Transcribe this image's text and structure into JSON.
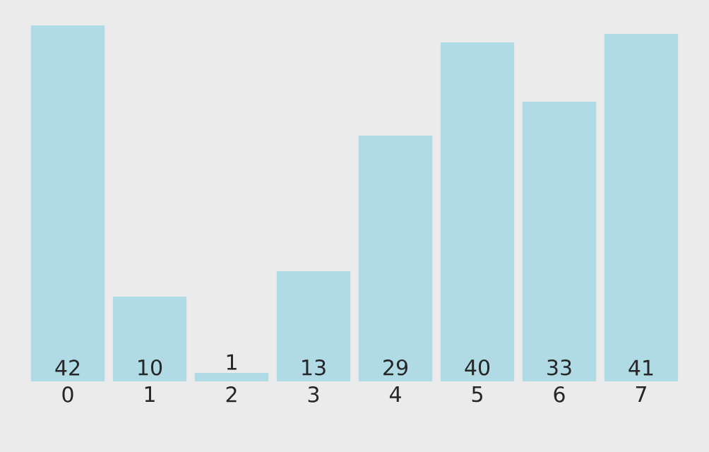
{
  "chart_data": {
    "type": "bar",
    "categories": [
      "0",
      "1",
      "2",
      "3",
      "4",
      "5",
      "6",
      "7"
    ],
    "values": [
      42,
      10,
      1,
      13,
      29,
      40,
      33,
      41
    ],
    "value_labels": [
      "42",
      "10",
      "1",
      "13",
      "29",
      "40",
      "33",
      "41"
    ],
    "color": "#b0dbe5"
  }
}
